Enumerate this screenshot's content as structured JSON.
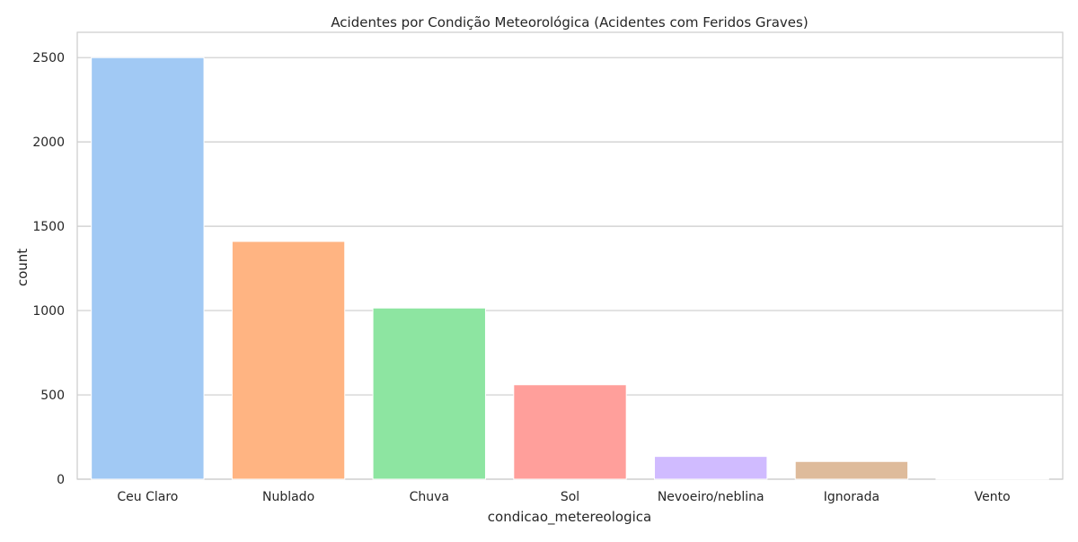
{
  "chart_data": {
    "type": "bar",
    "title": "Acidentes por Condição Meteorológica (Acidentes com Feridos Graves)",
    "xlabel": "condicao_metereologica",
    "ylabel": "count",
    "categories": [
      "Ceu Claro",
      "Nublado",
      "Chuva",
      "Sol",
      "Nevoeiro/neblina",
      "Ignorada",
      "Vento"
    ],
    "values": [
      2500,
      1410,
      1015,
      560,
      135,
      105,
      3
    ],
    "colors": [
      "#a1c9f4",
      "#ffb482",
      "#8de5a1",
      "#ff9f9b",
      "#d0bbff",
      "#debb9b",
      "#fab0e4"
    ],
    "ylim": [
      0,
      2650
    ],
    "yticks": [
      0,
      500,
      1000,
      1500,
      2000,
      2500
    ],
    "grid": true,
    "legend": "none"
  }
}
